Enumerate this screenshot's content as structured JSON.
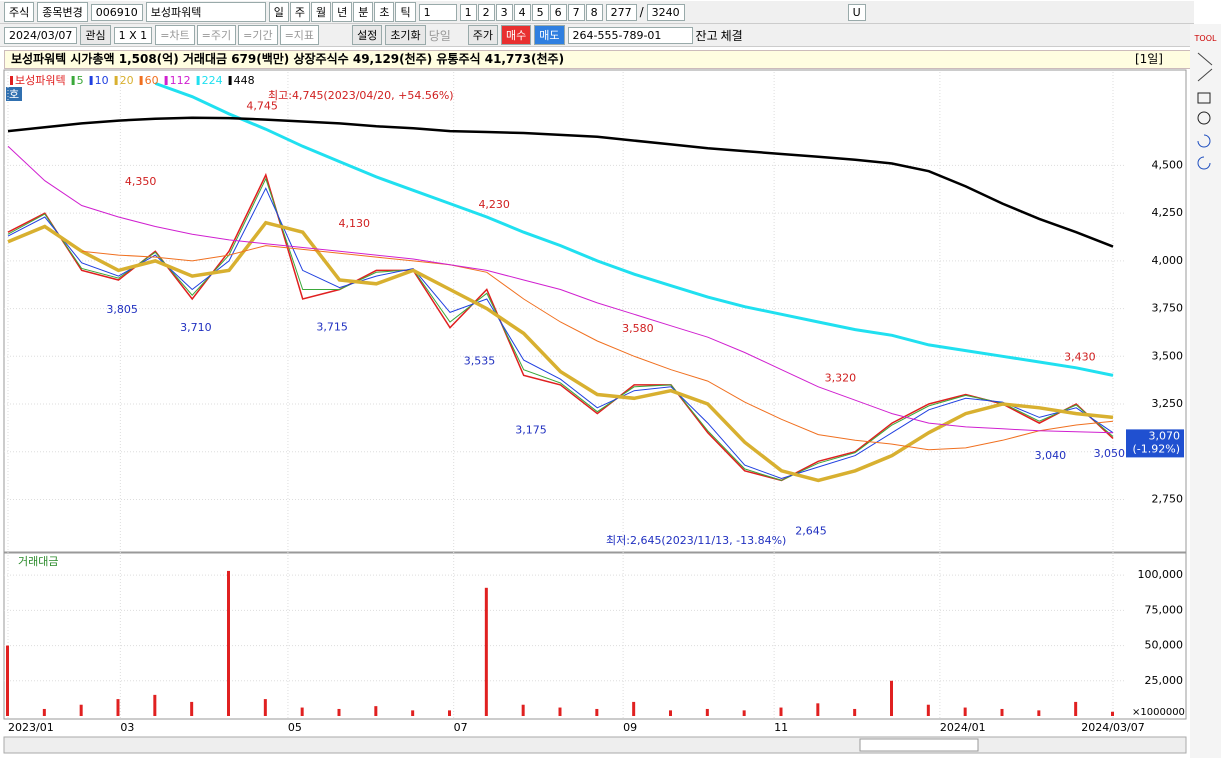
{
  "toolbar": {
    "market": "주식",
    "change_stock": "종목변경",
    "code": "006910",
    "stock_name": "보성파워텍",
    "periods": [
      "일",
      "주",
      "월",
      "년",
      "분",
      "초",
      "틱"
    ],
    "period_n": "1",
    "pages": [
      "1",
      "2",
      "3",
      "4",
      "5",
      "6",
      "7",
      "8"
    ],
    "count": "277",
    "slash": "/",
    "total": "3240",
    "u": "U",
    "date": "2024/03/07",
    "watch": "관심",
    "layout": "1 X 1",
    "tabs": [
      "=차트",
      "=주기",
      "=기간",
      "=지표"
    ],
    "settings": "설정",
    "reset": "초기화",
    "today": "당일",
    "price": "주가",
    "buy": "매수",
    "sell": "매도",
    "account": "264-555-789-01",
    "balance": "잔고",
    "fill": "체결",
    "tool": "TOOL"
  },
  "info": {
    "summary": "보성파워텍  시가총액 1,508(억)  거래대금 679(백만)  상장주식수 49,129(천주)  유통주식 41,773(천주)",
    "period": "[1일]",
    "badge": "호"
  },
  "chart_data": {
    "type": "line",
    "x": [
      0,
      1,
      2,
      3,
      4,
      5,
      6,
      7,
      8,
      9,
      10,
      11,
      12,
      13,
      14,
      15,
      16,
      17,
      18,
      19,
      20,
      21,
      22,
      23,
      24,
      25,
      26,
      27,
      28,
      29,
      30
    ],
    "xlim": [
      0,
      30
    ],
    "xticks": [
      {
        "value": 0,
        "label": "2023/01"
      },
      {
        "value": 3.05,
        "label": "03"
      },
      {
        "value": 7.6,
        "label": "05"
      },
      {
        "value": 12.1,
        "label": "07"
      },
      {
        "value": 16.7,
        "label": "09"
      },
      {
        "value": 20.8,
        "label": "11"
      },
      {
        "value": 25.3,
        "label": "2024/01"
      },
      {
        "value": 30,
        "label": "2024/03/07"
      }
    ],
    "ylim": [
      2480,
      5000
    ],
    "yticks": [
      {
        "value": 2750,
        "label": "2,750"
      },
      {
        "value": 3000,
        "label": "3,000"
      },
      {
        "value": 3250,
        "label": "3,250"
      },
      {
        "value": 3500,
        "label": "3,500"
      },
      {
        "value": 3750,
        "label": "3,750"
      },
      {
        "value": 4000,
        "label": "4,000"
      },
      {
        "value": 4250,
        "label": "4,250"
      },
      {
        "value": 4500,
        "label": "4,500"
      }
    ],
    "grid": true,
    "series": [
      {
        "name": "보성파워텍",
        "color": "#e02020",
        "values": [
          4150,
          4250,
          3950,
          3900,
          4050,
          3800,
          4050,
          4450,
          3800,
          3850,
          3950,
          3950,
          3650,
          3850,
          3400,
          3350,
          3200,
          3350,
          3350,
          3100,
          2900,
          2850,
          2950,
          3000,
          3150,
          3250,
          3300,
          3250,
          3150,
          3250,
          3070
        ]
      },
      {
        "name": "5",
        "color": "#3aa83a",
        "values": [
          4140,
          4245,
          3960,
          3910,
          4045,
          3820,
          4030,
          4430,
          3850,
          3850,
          3940,
          3955,
          3680,
          3830,
          3430,
          3360,
          3210,
          3340,
          3350,
          3110,
          2910,
          2850,
          2940,
          2995,
          3140,
          3240,
          3295,
          3255,
          3160,
          3245,
          3080
        ]
      },
      {
        "name": "10",
        "color": "#2040e0",
        "values": [
          4130,
          4230,
          3990,
          3920,
          4030,
          3850,
          4000,
          4380,
          3950,
          3860,
          3920,
          3960,
          3730,
          3800,
          3480,
          3380,
          3230,
          3320,
          3340,
          3150,
          2930,
          2860,
          2920,
          2980,
          3100,
          3220,
          3280,
          3260,
          3180,
          3230,
          3100
        ]
      },
      {
        "name": "20",
        "color": "#d8b030",
        "values": [
          4100,
          4180,
          4050,
          3950,
          4000,
          3920,
          3950,
          4200,
          4150,
          3900,
          3880,
          3950,
          3850,
          3750,
          3620,
          3420,
          3300,
          3280,
          3320,
          3250,
          3050,
          2900,
          2850,
          2900,
          2980,
          3100,
          3200,
          3250,
          3230,
          3200,
          3180
        ]
      },
      {
        "name": "60",
        "color": "#f07020",
        "values": [
          null,
          null,
          4050,
          4030,
          4020,
          4000,
          4030,
          4080,
          4060,
          4040,
          4020,
          4000,
          3980,
          3940,
          3800,
          3680,
          3580,
          3500,
          3430,
          3370,
          3260,
          3170,
          3090,
          3060,
          3040,
          3010,
          3020,
          3060,
          3110,
          3140,
          3160
        ]
      },
      {
        "name": "112",
        "color": "#d020d0",
        "values": [
          4600,
          4420,
          4290,
          4230,
          4180,
          4140,
          4110,
          4090,
          4070,
          4050,
          4030,
          4010,
          3980,
          3950,
          3900,
          3850,
          3780,
          3720,
          3660,
          3600,
          3520,
          3430,
          3340,
          3270,
          3200,
          3150,
          3130,
          3120,
          3110,
          3105,
          3100
        ]
      },
      {
        "name": "224",
        "color": "#20e0f0",
        "values": [
          null,
          null,
          null,
          null,
          4930,
          4860,
          4770,
          4690,
          4600,
          4520,
          4440,
          4370,
          4300,
          4230,
          4150,
          4080,
          4000,
          3930,
          3870,
          3810,
          3760,
          3720,
          3680,
          3640,
          3610,
          3560,
          3530,
          3500,
          3470,
          3440,
          3400
        ]
      },
      {
        "name": "448",
        "color": "#000000",
        "values": [
          4680,
          4700,
          4720,
          4735,
          4745,
          4750,
          4748,
          4740,
          4730,
          4720,
          4705,
          4695,
          4680,
          4675,
          4670,
          4660,
          4650,
          4630,
          4610,
          4590,
          4575,
          4560,
          4545,
          4530,
          4510,
          4470,
          4390,
          4300,
          4220,
          4150,
          4075
        ]
      }
    ],
    "annotations": [
      {
        "x": 3.6,
        "value": 4350,
        "label": "4,350",
        "color": "#d02020"
      },
      {
        "x": 6.9,
        "value": 4745,
        "label": "4,745",
        "color": "#d02020"
      },
      {
        "x": 9.4,
        "value": 4130,
        "label": "4,130",
        "color": "#d02020"
      },
      {
        "x": 13.2,
        "value": 4230,
        "label": "4,230",
        "color": "#d02020"
      },
      {
        "x": 17.1,
        "value": 3580,
        "label": "3,580",
        "color": "#d02020"
      },
      {
        "x": 22.6,
        "value": 3320,
        "label": "3,320",
        "color": "#d02020"
      },
      {
        "x": 29.1,
        "value": 3430,
        "label": "3,430",
        "color": "#d02020"
      },
      {
        "x": 3.1,
        "value": 3805,
        "label": "3,805",
        "color": "#2030c0"
      },
      {
        "x": 5.1,
        "value": 3710,
        "label": "3,710",
        "color": "#2030c0"
      },
      {
        "x": 8.8,
        "value": 3715,
        "label": "3,715",
        "color": "#2030c0"
      },
      {
        "x": 12.8,
        "value": 3535,
        "label": "3,535",
        "color": "#2030c0"
      },
      {
        "x": 14.2,
        "value": 3175,
        "label": "3,175",
        "color": "#2030c0"
      },
      {
        "x": 21.8,
        "value": 2645,
        "label": "2,645",
        "color": "#2030c0"
      },
      {
        "x": 28.3,
        "value": 3040,
        "label": "3,040",
        "color": "#2030c0"
      },
      {
        "x": 29.9,
        "value": 3050,
        "label": "3,050",
        "color": "#2030c0"
      }
    ],
    "high_note": "최고:4,745(2023/04/20, +54.56%)",
    "low_note": "최저:2,645(2023/11/13, -13.84%)",
    "current": {
      "value": 3070,
      "label": "3,070",
      "change": "(-1.92%)"
    },
    "volume": {
      "title": "거래대금",
      "unit": "×1000000",
      "color": "#e02020",
      "values": [
        50000,
        5000,
        8000,
        12000,
        15000,
        10000,
        103000,
        12000,
        6000,
        5000,
        7000,
        4000,
        4000,
        91000,
        8000,
        6000,
        5000,
        10000,
        4000,
        5000,
        4000,
        6000,
        9000,
        5000,
        25000,
        8000,
        6000,
        5000,
        4000,
        10000,
        3000
      ],
      "ylim": [
        0,
        115000
      ],
      "yticks": [
        {
          "value": 25000,
          "label": "25,000"
        },
        {
          "value": 50000,
          "label": "50,000"
        },
        {
          "value": 75000,
          "label": "75,000"
        },
        {
          "value": 100000,
          "label": "100,000"
        }
      ]
    }
  }
}
